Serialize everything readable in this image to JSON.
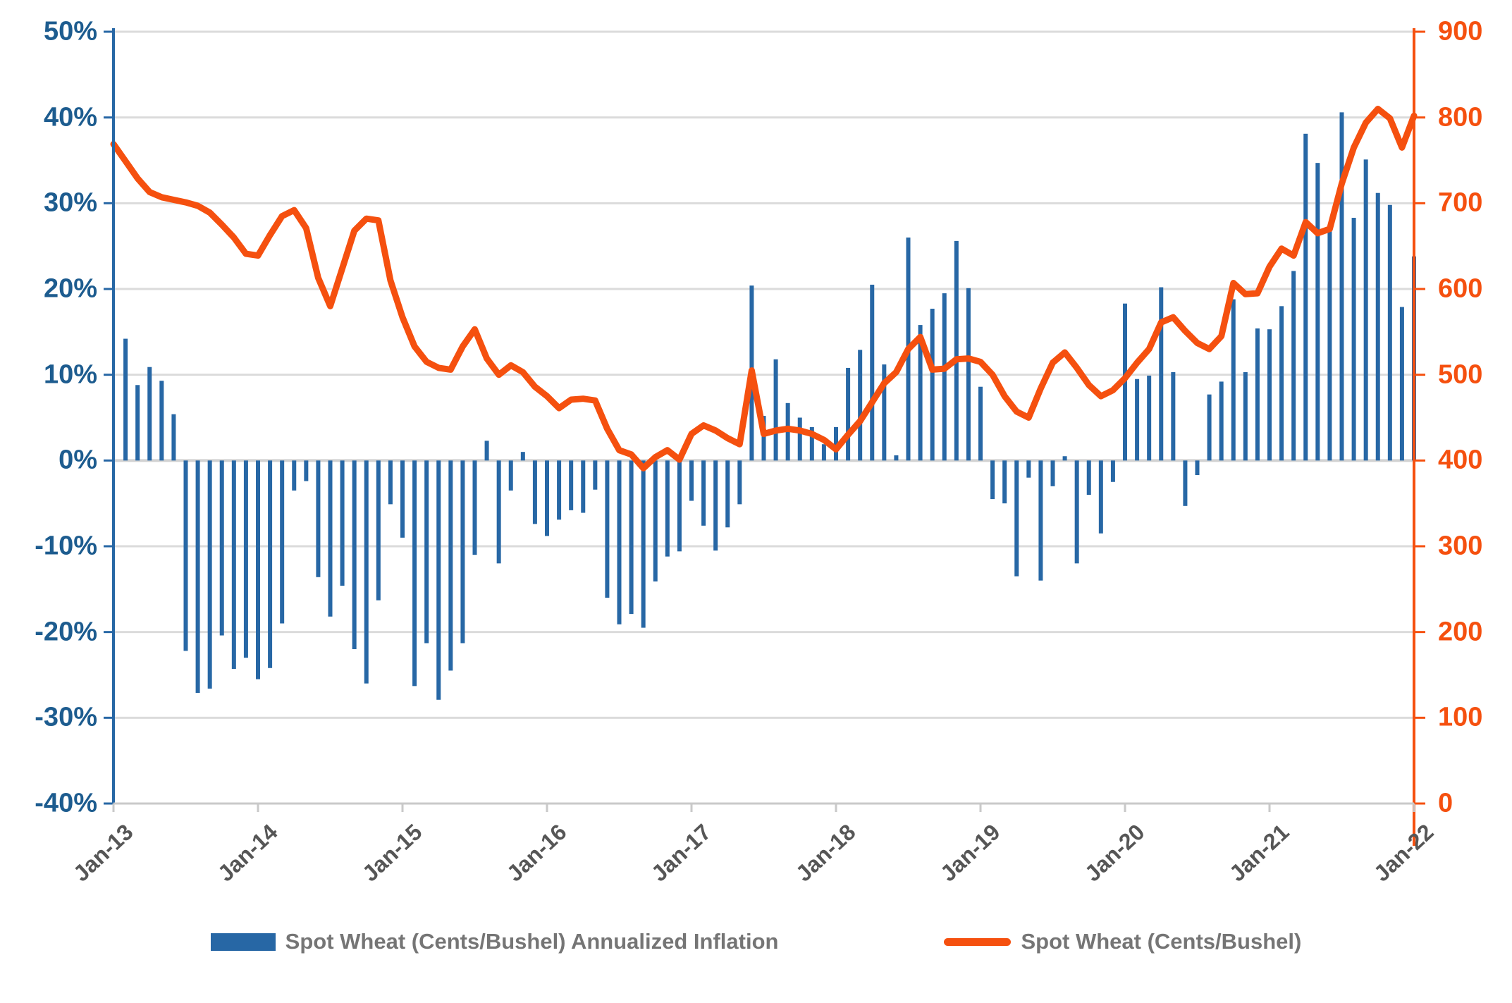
{
  "chart_data": {
    "type": "bar+line",
    "x": [
      "Jan-13",
      "Feb-13",
      "Mar-13",
      "Apr-13",
      "May-13",
      "Jun-13",
      "Jul-13",
      "Aug-13",
      "Sep-13",
      "Oct-13",
      "Nov-13",
      "Dec-13",
      "Jan-14",
      "Feb-14",
      "Mar-14",
      "Apr-14",
      "May-14",
      "Jun-14",
      "Jul-14",
      "Aug-14",
      "Sep-14",
      "Oct-14",
      "Nov-14",
      "Dec-14",
      "Jan-15",
      "Feb-15",
      "Mar-15",
      "Apr-15",
      "May-15",
      "Jun-15",
      "Jul-15",
      "Aug-15",
      "Sep-15",
      "Oct-15",
      "Nov-15",
      "Dec-15",
      "Jan-16",
      "Feb-16",
      "Mar-16",
      "Apr-16",
      "May-16",
      "Jun-16",
      "Jul-16",
      "Aug-16",
      "Sep-16",
      "Oct-16",
      "Nov-16",
      "Dec-16",
      "Jan-17",
      "Feb-17",
      "Mar-17",
      "Apr-17",
      "May-17",
      "Jun-17",
      "Jul-17",
      "Aug-17",
      "Sep-17",
      "Oct-17",
      "Nov-17",
      "Dec-17",
      "Jan-18",
      "Feb-18",
      "Mar-18",
      "Apr-18",
      "May-18",
      "Jun-18",
      "Jul-18",
      "Aug-18",
      "Sep-18",
      "Oct-18",
      "Nov-18",
      "Dec-18",
      "Jan-19",
      "Feb-19",
      "Mar-19",
      "Apr-19",
      "May-19",
      "Jun-19",
      "Jul-19",
      "Aug-19",
      "Sep-19",
      "Oct-19",
      "Nov-19",
      "Dec-19",
      "Jan-20",
      "Feb-20",
      "Mar-20",
      "Apr-20",
      "May-20",
      "Jun-20",
      "Jul-20",
      "Aug-20",
      "Sep-20",
      "Oct-20",
      "Nov-20",
      "Dec-20",
      "Jan-21",
      "Feb-21",
      "Mar-21",
      "Apr-21",
      "May-21",
      "Jun-21",
      "Jul-21",
      "Aug-21",
      "Sep-21",
      "Oct-21",
      "Nov-21",
      "Dec-21",
      "Jan-22"
    ],
    "x_tick_labels": [
      "Jan-13",
      "Jan-14",
      "Jan-15",
      "Jan-16",
      "Jan-17",
      "Jan-18",
      "Jan-19",
      "Jan-20",
      "Jan-21",
      "Jan-22"
    ],
    "series": [
      {
        "name": "Spot Wheat (Cents/Bushel) Annualized Inflation",
        "kind": "bar",
        "axis": "left",
        "color": "#2767a5",
        "values": [
          null,
          14.2,
          8.8,
          10.9,
          9.3,
          5.4,
          -22.2,
          -27.1,
          -26.6,
          -20.4,
          -24.3,
          -23.0,
          -25.5,
          -24.2,
          -19.0,
          -3.5,
          -2.4,
          -13.6,
          -18.2,
          -14.6,
          -22.0,
          -26.0,
          -16.3,
          -5.1,
          -9.0,
          -26.3,
          -21.3,
          -27.9,
          -24.5,
          -21.3,
          -11.0,
          2.3,
          -12.0,
          -3.5,
          1.0,
          -7.4,
          -8.8,
          -6.9,
          -5.8,
          -6.1,
          -3.4,
          -16.0,
          -19.1,
          -17.9,
          -19.5,
          -14.1,
          -11.2,
          -10.6,
          -4.7,
          -7.6,
          -10.5,
          -7.8,
          -5.1,
          20.4,
          5.2,
          11.8,
          6.7,
          5.0,
          3.9,
          1.9,
          3.9,
          10.8,
          12.9,
          20.5,
          11.2,
          0.6,
          26.0,
          15.8,
          17.7,
          19.5,
          25.6,
          20.1,
          8.6,
          -4.5,
          -5.0,
          -13.5,
          -2.0,
          -14.0,
          -3.0,
          0.5,
          -12.0,
          -4.0,
          -8.5,
          -2.5,
          18.3,
          9.5,
          9.9,
          20.2,
          10.3,
          -5.3,
          -1.7,
          7.7,
          9.2,
          18.8,
          10.3,
          15.4,
          15.3,
          18.0,
          22.1,
          38.1,
          34.7,
          27.0,
          40.6,
          28.3,
          35.1,
          31.2,
          29.8,
          17.9,
          23.8
        ]
      },
      {
        "name": "Spot Wheat (Cents/Bushel)",
        "kind": "line",
        "axis": "right",
        "color": "#f5500f",
        "values": [
          769,
          749,
          729,
          713,
          707,
          704,
          701,
          697,
          689,
          675,
          660,
          641,
          639,
          663,
          685,
          692,
          671,
          613,
          580,
          624,
          668,
          682,
          680,
          610,
          567,
          533,
          515,
          508,
          506,
          533,
          553,
          519,
          500,
          511,
          503,
          486,
          475,
          461,
          471,
          472,
          470,
          437,
          412,
          407,
          391,
          404,
          412,
          401,
          431,
          441,
          435,
          426,
          419,
          505,
          431,
          435,
          437,
          435,
          431,
          424,
          413,
          430,
          446,
          468,
          490,
          503,
          530,
          544,
          506,
          507,
          518,
          519,
          515,
          500,
          475,
          457,
          450,
          484,
          514,
          526,
          508,
          488,
          475,
          482,
          496,
          514,
          530,
          561,
          567,
          551,
          537,
          530,
          545,
          607,
          594,
          595,
          626,
          647,
          639,
          678,
          665,
          670,
          723,
          765,
          794,
          810,
          799,
          765,
          802
        ]
      }
    ],
    "left_axis": {
      "min": -40,
      "max": 50,
      "step": 10,
      "suffix": "%",
      "label_color": "#1d5c8f",
      "line_color": "#2767a5"
    },
    "right_axis": {
      "min": 0,
      "max": 900,
      "step": 100,
      "label_color": "#f5500f",
      "line_color": "#f5500f"
    },
    "grid": {
      "show": true,
      "color": "#dbdbdb"
    },
    "legend_position": "bottom"
  },
  "legend": {
    "items": [
      {
        "label": "Spot Wheat (Cents/Bushel) Annualized Inflation",
        "swatch": "bar-swatch",
        "color": "#2767a5"
      },
      {
        "label": "Spot Wheat (Cents/Bushel)",
        "swatch": "line-swatch",
        "color": "#f5500f"
      }
    ]
  },
  "colors": {
    "bar": "#2767a5",
    "line": "#f5500f",
    "left_labels": "#1d5c8f",
    "right_labels": "#f5500f",
    "x_labels": "#565656",
    "legend_text": "#757575",
    "gridline": "#dbdbdb",
    "bottom_axis": "#c9c9c9",
    "background": "#ffffff"
  }
}
